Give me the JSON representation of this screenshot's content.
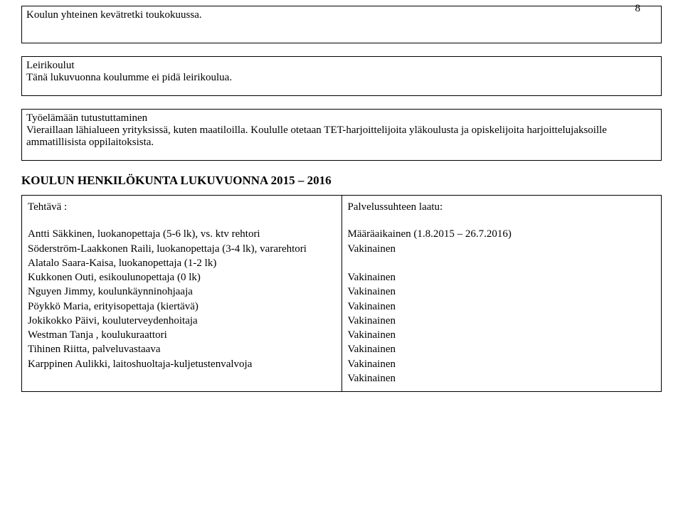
{
  "page_number": "8",
  "box1": {
    "line1": "Koulun yhteinen kevätretki toukokuussa."
  },
  "box2": {
    "line1": "Leirikoulut",
    "line2": "Tänä lukuvuonna koulumme ei pidä leirikoulua."
  },
  "box3": {
    "line1": "Työelämään tutustuttaminen",
    "line2": "Vieraillaan lähialueen yrityksissä, kuten maatiloilla. Koululle otetaan TET-harjoittelijoita yläkoulusta ja opiskelijoita harjoittelujaksoille ammatillisista oppilaitoksista."
  },
  "section_title": "KOULUN HENKILÖKUNTA LUKUVUONNA  2015 – 2016",
  "staff_header_left": "Tehtävä :",
  "staff_header_right": "Palvelussuhteen laatu:",
  "staff": [
    {
      "role": "Antti Säkkinen, luokanopettaja (5-6 lk), vs. ktv rehtori",
      "status": "Määräaikainen (1.8.2015 – 26.7.2016)"
    },
    {
      "role": "Söderström-Laakkonen Raili, luokanopettaja (3-4 lk), vararehtori",
      "status": "Vakinainen"
    },
    {
      "role": "Alatalo Saara-Kaisa,  luokanopettaja (1-2 lk)",
      "status": "Vakinainen"
    },
    {
      "role": "Kukkonen Outi, esikoulunopettaja (0 lk)",
      "status": "Vakinainen"
    },
    {
      "role": "Nguyen Jimmy, koulunkäynninohjaaja",
      "status": "Vakinainen"
    },
    {
      "role": "Pöykkö Maria, erityisopettaja (kiertävä)",
      "status": "Vakinainen"
    },
    {
      "role": "Jokikokko Päivi, kouluterveydenhoitaja",
      "status": "Vakinainen"
    },
    {
      "role": "Westman Tanja , koulukuraattori",
      "status": "Vakinainen"
    },
    {
      "role": "Tihinen Riitta,  palveluvastaava",
      "status": "Vakinainen"
    },
    {
      "role": "Karppinen Aulikki, laitoshuoltaja-kuljetustenvalvoja",
      "status": "Vakinainen"
    }
  ]
}
